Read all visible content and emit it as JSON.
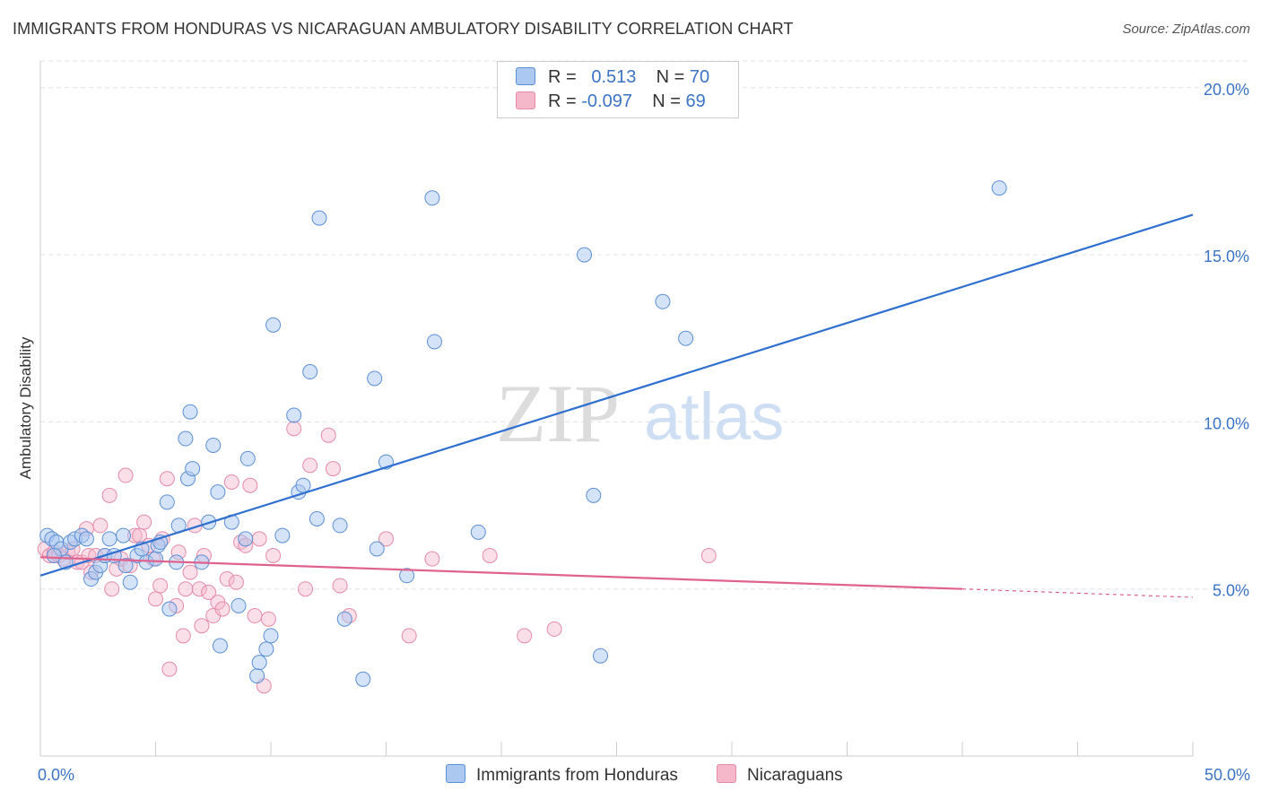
{
  "title": "IMMIGRANTS FROM HONDURAS VS NICARAGUAN AMBULATORY DISABILITY CORRELATION CHART",
  "source": "Source: ZipAtlas.com",
  "watermark": {
    "zip": "ZIP",
    "atlas": "atlas"
  },
  "legend": {
    "rows": [
      {
        "r_label": "R =",
        "r_value": "0.513",
        "n_label": "N =",
        "n_value": "70"
      },
      {
        "r_label": "R =",
        "r_value": "-0.097",
        "n_label": "N =",
        "n_value": "69"
      }
    ]
  },
  "bottom_legend": [
    "Immigrants from Honduras",
    "Nicaraguans"
  ],
  "colors": {
    "blue_fill": "#aac8f0",
    "blue_stroke": "#5b8fd6",
    "blue_line": "#2f6fd0",
    "pink_fill": "#f5b8cb",
    "pink_stroke": "#e68aa8",
    "pink_line": "#e0628f",
    "tick_label": "#3b73c6",
    "grid": "#e3e3e3"
  },
  "chart_data": {
    "type": "scatter",
    "ylabel": "Ambulatory Disability",
    "xlim": [
      0,
      50
    ],
    "ylim": [
      0,
      20.8
    ],
    "x_tick_labels": [
      "0.0%",
      "50.0%"
    ],
    "y_ticks": [
      5,
      10,
      15,
      20
    ],
    "y_tick_labels": [
      "5.0%",
      "10.0%",
      "15.0%",
      "20.0%"
    ],
    "grid": true,
    "legend_placement": "top-center",
    "series": [
      {
        "name": "Immigrants from Honduras",
        "color": "#aac8f0",
        "trend": {
          "x": [
            0,
            50
          ],
          "y": [
            5.4,
            16.2
          ],
          "dashed_from": null
        },
        "points": [
          [
            0.3,
            6.6
          ],
          [
            0.5,
            6.5
          ],
          [
            0.7,
            6.4
          ],
          [
            0.9,
            6.2
          ],
          [
            0.6,
            6.0
          ],
          [
            1.1,
            5.8
          ],
          [
            1.3,
            6.4
          ],
          [
            1.5,
            6.5
          ],
          [
            1.8,
            6.6
          ],
          [
            2.0,
            6.5
          ],
          [
            2.2,
            5.3
          ],
          [
            2.4,
            5.5
          ],
          [
            2.6,
            5.7
          ],
          [
            2.8,
            6.0
          ],
          [
            3.0,
            6.5
          ],
          [
            3.2,
            6.0
          ],
          [
            3.6,
            6.6
          ],
          [
            3.9,
            5.2
          ],
          [
            4.2,
            6.0
          ],
          [
            4.4,
            6.2
          ],
          [
            4.6,
            5.8
          ],
          [
            5.0,
            5.9
          ],
          [
            5.1,
            6.3
          ],
          [
            5.2,
            6.4
          ],
          [
            5.5,
            7.6
          ],
          [
            5.6,
            4.4
          ],
          [
            5.9,
            5.8
          ],
          [
            6.0,
            6.9
          ],
          [
            6.3,
            9.5
          ],
          [
            6.4,
            8.3
          ],
          [
            6.6,
            8.6
          ],
          [
            6.5,
            10.3
          ],
          [
            7.0,
            5.8
          ],
          [
            7.3,
            7.0
          ],
          [
            7.5,
            9.3
          ],
          [
            7.7,
            7.9
          ],
          [
            7.8,
            3.3
          ],
          [
            8.3,
            7.0
          ],
          [
            8.6,
            4.5
          ],
          [
            8.9,
            6.5
          ],
          [
            9.0,
            8.9
          ],
          [
            9.4,
            2.4
          ],
          [
            9.5,
            2.8
          ],
          [
            9.8,
            3.2
          ],
          [
            10.0,
            3.6
          ],
          [
            10.1,
            12.9
          ],
          [
            10.5,
            6.6
          ],
          [
            11.0,
            10.2
          ],
          [
            11.2,
            7.9
          ],
          [
            11.4,
            8.1
          ],
          [
            11.7,
            11.5
          ],
          [
            12.0,
            7.1
          ],
          [
            12.1,
            16.1
          ],
          [
            13.0,
            6.9
          ],
          [
            13.2,
            4.1
          ],
          [
            14.0,
            2.3
          ],
          [
            14.5,
            11.3
          ],
          [
            14.6,
            6.2
          ],
          [
            15.0,
            8.8
          ],
          [
            15.9,
            5.4
          ],
          [
            17.0,
            16.7
          ],
          [
            17.1,
            12.4
          ],
          [
            19.0,
            6.7
          ],
          [
            23.6,
            15.0
          ],
          [
            24.0,
            7.8
          ],
          [
            24.3,
            3.0
          ],
          [
            27.0,
            13.6
          ],
          [
            28.0,
            12.5
          ],
          [
            41.6,
            17.0
          ],
          [
            3.7,
            5.7
          ]
        ]
      },
      {
        "name": "Nicaraguans",
        "color": "#f5b8cb",
        "trend": {
          "x": [
            0,
            40,
            50
          ],
          "y": [
            5.95,
            5.0,
            4.75
          ],
          "dashed_from": 40
        },
        "points": [
          [
            0.2,
            6.2
          ],
          [
            0.4,
            6.0
          ],
          [
            0.6,
            6.1
          ],
          [
            0.8,
            6.0
          ],
          [
            1.0,
            5.9
          ],
          [
            1.2,
            6.1
          ],
          [
            1.4,
            6.2
          ],
          [
            1.6,
            5.8
          ],
          [
            1.8,
            5.8
          ],
          [
            2.0,
            6.8
          ],
          [
            2.1,
            6.0
          ],
          [
            2.4,
            6.0
          ],
          [
            2.6,
            6.9
          ],
          [
            2.8,
            6.0
          ],
          [
            3.0,
            7.8
          ],
          [
            3.1,
            5.0
          ],
          [
            3.3,
            5.6
          ],
          [
            3.5,
            5.9
          ],
          [
            3.7,
            8.4
          ],
          [
            3.9,
            5.7
          ],
          [
            4.1,
            6.6
          ],
          [
            4.3,
            6.6
          ],
          [
            4.5,
            7.0
          ],
          [
            4.7,
            6.3
          ],
          [
            4.9,
            5.9
          ],
          [
            5.0,
            4.7
          ],
          [
            5.2,
            5.1
          ],
          [
            5.3,
            6.5
          ],
          [
            5.5,
            8.3
          ],
          [
            5.6,
            2.6
          ],
          [
            5.9,
            4.5
          ],
          [
            6.0,
            6.1
          ],
          [
            6.2,
            3.6
          ],
          [
            6.3,
            5.0
          ],
          [
            6.5,
            5.5
          ],
          [
            6.7,
            6.9
          ],
          [
            6.9,
            5.0
          ],
          [
            7.1,
            6.0
          ],
          [
            7.3,
            4.9
          ],
          [
            7.5,
            4.2
          ],
          [
            7.7,
            4.6
          ],
          [
            7.9,
            4.4
          ],
          [
            8.1,
            5.3
          ],
          [
            8.3,
            8.2
          ],
          [
            8.5,
            5.2
          ],
          [
            8.7,
            6.4
          ],
          [
            8.9,
            6.3
          ],
          [
            9.1,
            8.1
          ],
          [
            9.3,
            4.2
          ],
          [
            9.5,
            6.5
          ],
          [
            9.7,
            2.1
          ],
          [
            9.9,
            4.1
          ],
          [
            10.1,
            6.0
          ],
          [
            11.0,
            9.8
          ],
          [
            11.5,
            5.0
          ],
          [
            11.7,
            8.7
          ],
          [
            12.5,
            9.6
          ],
          [
            12.7,
            8.6
          ],
          [
            13.0,
            5.1
          ],
          [
            13.4,
            4.2
          ],
          [
            15.0,
            6.5
          ],
          [
            16.0,
            3.6
          ],
          [
            17.0,
            5.9
          ],
          [
            19.5,
            6.0
          ],
          [
            21.0,
            3.6
          ],
          [
            22.3,
            3.8
          ],
          [
            29.0,
            6.0
          ],
          [
            7.0,
            3.9
          ],
          [
            2.2,
            5.5
          ]
        ]
      }
    ]
  }
}
